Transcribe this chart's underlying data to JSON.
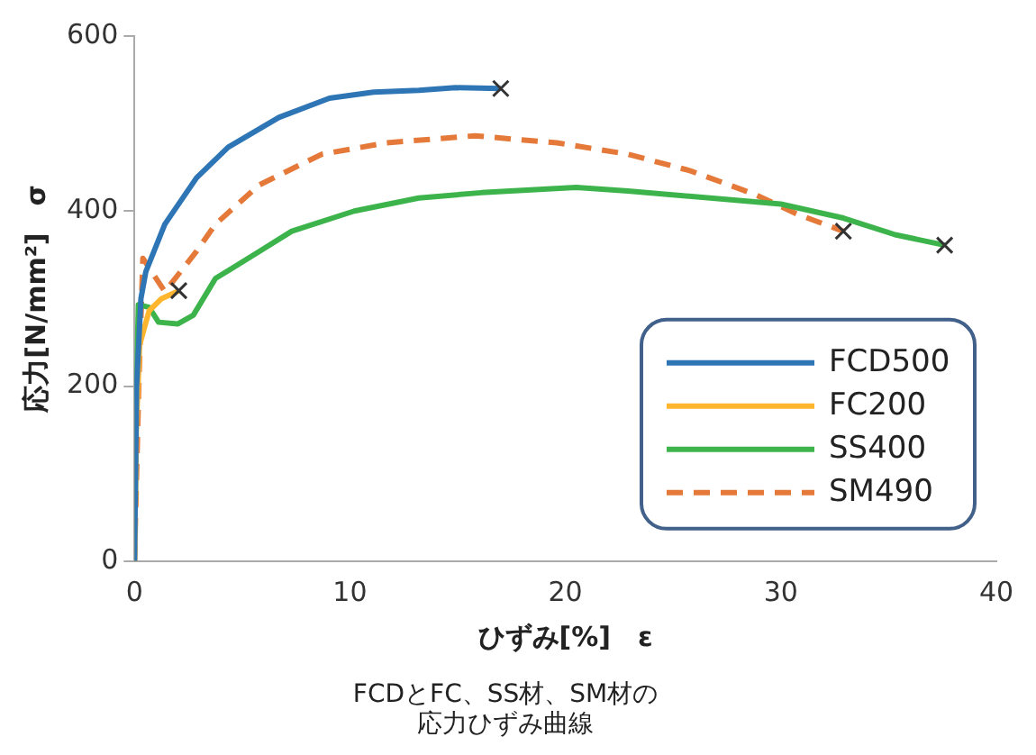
{
  "chart_data": {
    "type": "line",
    "title": "FCDとFC、SS材、SM材の応力ひずみ曲線",
    "xlabel": "ひずみ[%]　ε",
    "ylabel": "応力[N/mm²]　σ",
    "xlim": [
      0,
      40
    ],
    "xticks": [
      0,
      10,
      20,
      30,
      40
    ],
    "ylim": [
      0,
      600
    ],
    "yticks": [
      0,
      200,
      400,
      600
    ],
    "grid": false,
    "legend": "bottom right",
    "line_style": "solid",
    "series": [
      {
        "name": "FCD500",
        "color": "#2e75b6",
        "x": [
          0,
          0.1,
          0.3,
          0.53,
          1.41,
          2.88,
          4.35,
          6.7,
          9.05,
          11.1,
          13.2,
          14.9,
          17.0
        ],
        "values": [
          0,
          200,
          300,
          331,
          385,
          438,
          473,
          507,
          529,
          536,
          538,
          541,
          540
        ]
      },
      {
        "name": "FC200",
        "color": "#ffb52e",
        "x": [
          0,
          0.09,
          0.24,
          0.68,
          1.26,
          2.06
        ],
        "values": [
          0,
          155,
          247,
          286,
          300,
          309
        ]
      },
      {
        "name": "SS400",
        "color": "#3cb44b",
        "x": [
          0,
          0.1,
          0.18,
          0.68,
          1.12,
          2.0,
          2.73,
          3.76,
          5.8,
          7.3,
          10.2,
          13.2,
          16.1,
          20.5,
          22.9,
          30.0,
          32.9,
          35.3,
          37.6
        ],
        "values": [
          0,
          200,
          293,
          290,
          273,
          271,
          281,
          323,
          354,
          377,
          400,
          415,
          421,
          427,
          423,
          408,
          392,
          373,
          361
        ]
      },
      {
        "name": "SM490",
        "color": "#e5793a",
        "line_style": "dashed",
        "x": [
          0,
          0.2,
          0.39,
          1.41,
          2.88,
          3.76,
          5.8,
          8.7,
          11.7,
          15.8,
          19.6,
          22.9,
          25.8,
          28.8,
          30.8,
          32.9
        ],
        "values": [
          0,
          200,
          346,
          308,
          354,
          385,
          430,
          465,
          478,
          486,
          478,
          465,
          446,
          419,
          396,
          377
        ]
      }
    ]
  }
}
